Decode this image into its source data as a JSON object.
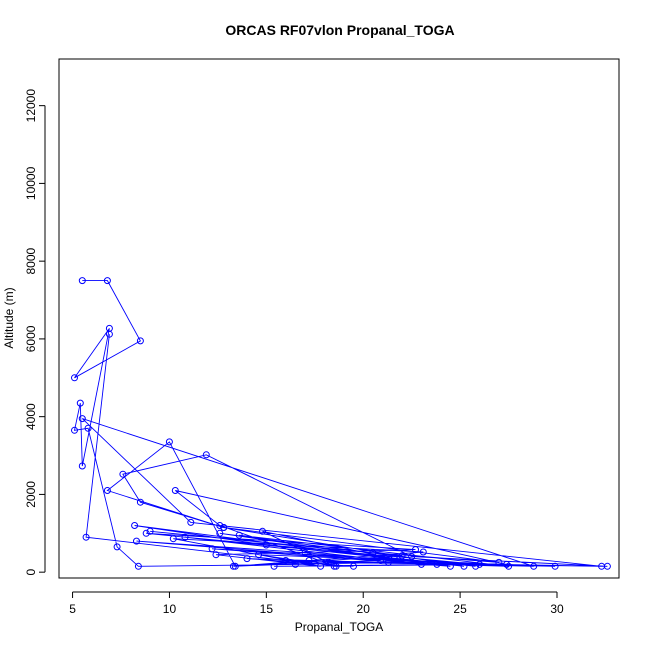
{
  "chart_data": {
    "type": "scatter",
    "title": "ORCAS RF07vlon Propanal_TOGA",
    "xlabel": "Propanal_TOGA",
    "ylabel": "Altitude (m)",
    "xlim": [
      4.3,
      33.2
    ],
    "ylim": [
      -150,
      13200
    ],
    "xticks": [
      5,
      10,
      15,
      20,
      25,
      30
    ],
    "yticks": [
      0,
      2000,
      4000,
      6000,
      8000,
      10000,
      12000
    ],
    "colors": {
      "series": "#0000ff",
      "axes": "#000000"
    },
    "series": [
      {
        "points": [
          [
            5.5,
            7500
          ],
          [
            6.8,
            7500
          ],
          [
            8.5,
            5950
          ],
          [
            5.1,
            5000
          ],
          [
            6.9,
            6270
          ],
          [
            5.5,
            2730
          ],
          [
            5.4,
            4350
          ],
          [
            5.1,
            3650
          ],
          [
            5.8,
            3700
          ],
          [
            7.3,
            650
          ],
          [
            8.4,
            150
          ],
          [
            16.5,
            200
          ],
          [
            21.3,
            250
          ],
          [
            32.6,
            150
          ],
          [
            22.5,
            400
          ],
          [
            11.9,
            3020
          ],
          [
            7.6,
            2520
          ],
          [
            8.5,
            1800
          ],
          [
            12.8,
            1150
          ],
          [
            27.0,
            250
          ],
          [
            20.5,
            500
          ],
          [
            9.0,
            1050
          ],
          [
            22.0,
            420
          ],
          [
            13.4,
            150
          ],
          [
            10.0,
            3350
          ],
          [
            6.8,
            2100
          ],
          [
            12.8,
            1150
          ],
          [
            25.2,
            150
          ],
          [
            15.0,
            700
          ],
          [
            8.2,
            1200
          ],
          [
            24.5,
            150
          ],
          [
            12.2,
            600
          ],
          [
            26.0,
            200
          ],
          [
            10.8,
            900
          ],
          [
            23.0,
            200
          ],
          [
            13.6,
            950
          ],
          [
            27.5,
            150
          ],
          [
            14.0,
            350
          ],
          [
            19.5,
            150
          ],
          [
            18.5,
            150
          ],
          [
            17.2,
            300
          ],
          [
            28.8,
            150
          ],
          [
            5.5,
            3950
          ],
          [
            11.1,
            1280
          ],
          [
            32.3,
            150
          ],
          [
            18.2,
            250
          ],
          [
            14.8,
            1050
          ],
          [
            21.6,
            350
          ],
          [
            12.6,
            1000
          ],
          [
            25.8,
            150
          ],
          [
            8.8,
            1000
          ],
          [
            22.7,
            580
          ],
          [
            12.4,
            450
          ],
          [
            17.8,
            150
          ],
          [
            10.2,
            860
          ],
          [
            23.1,
            520
          ],
          [
            13.3,
            150
          ],
          [
            20.9,
            300
          ],
          [
            8.3,
            800
          ],
          [
            17.0,
            500
          ],
          [
            23.8,
            200
          ],
          [
            15.4,
            150
          ],
          [
            27.4,
            200
          ],
          [
            10.3,
            2100
          ],
          [
            12.6,
            1200
          ],
          [
            18.6,
            150
          ],
          [
            14.6,
            450
          ],
          [
            29.9,
            150
          ],
          [
            16.0,
            300
          ],
          [
            5.7,
            900
          ],
          [
            6.9,
            6120
          ]
        ]
      }
    ]
  }
}
